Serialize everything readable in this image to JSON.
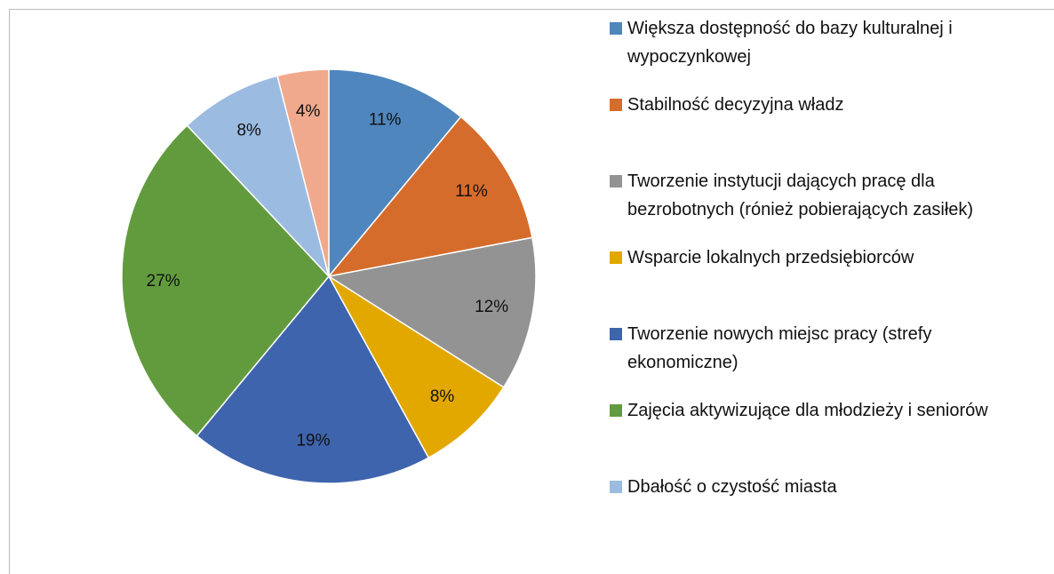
{
  "chart_data": {
    "type": "pie",
    "categories": [
      "Większa dostępność do bazy kulturalnej i wypoczynkowej",
      "Stabilność decyzyjna władz",
      "Tworzenie instytucji dających pracę dla bezrobotnych (rónież pobierających zasiłek)",
      "Wsparcie lokalnych przedsiębiorców",
      "Tworzenie nowych miejsc pracy (strefy ekonomiczne)",
      "Zajęcia aktywizujące dla młodzieży i seniorów",
      "Dbałość o czystość miasta",
      null
    ],
    "values": [
      11,
      11,
      12,
      8,
      19,
      27,
      8,
      4
    ],
    "value_labels": [
      "11%",
      "11%",
      "12%",
      "8%",
      "19%",
      "27%",
      "8%",
      "4%"
    ],
    "colors": [
      "#4f86be",
      "#d66c2b",
      "#939393",
      "#e3a800",
      "#3e64ad",
      "#629b3e",
      "#9cbbe1",
      "#f0a98c"
    ],
    "legend": "right"
  }
}
